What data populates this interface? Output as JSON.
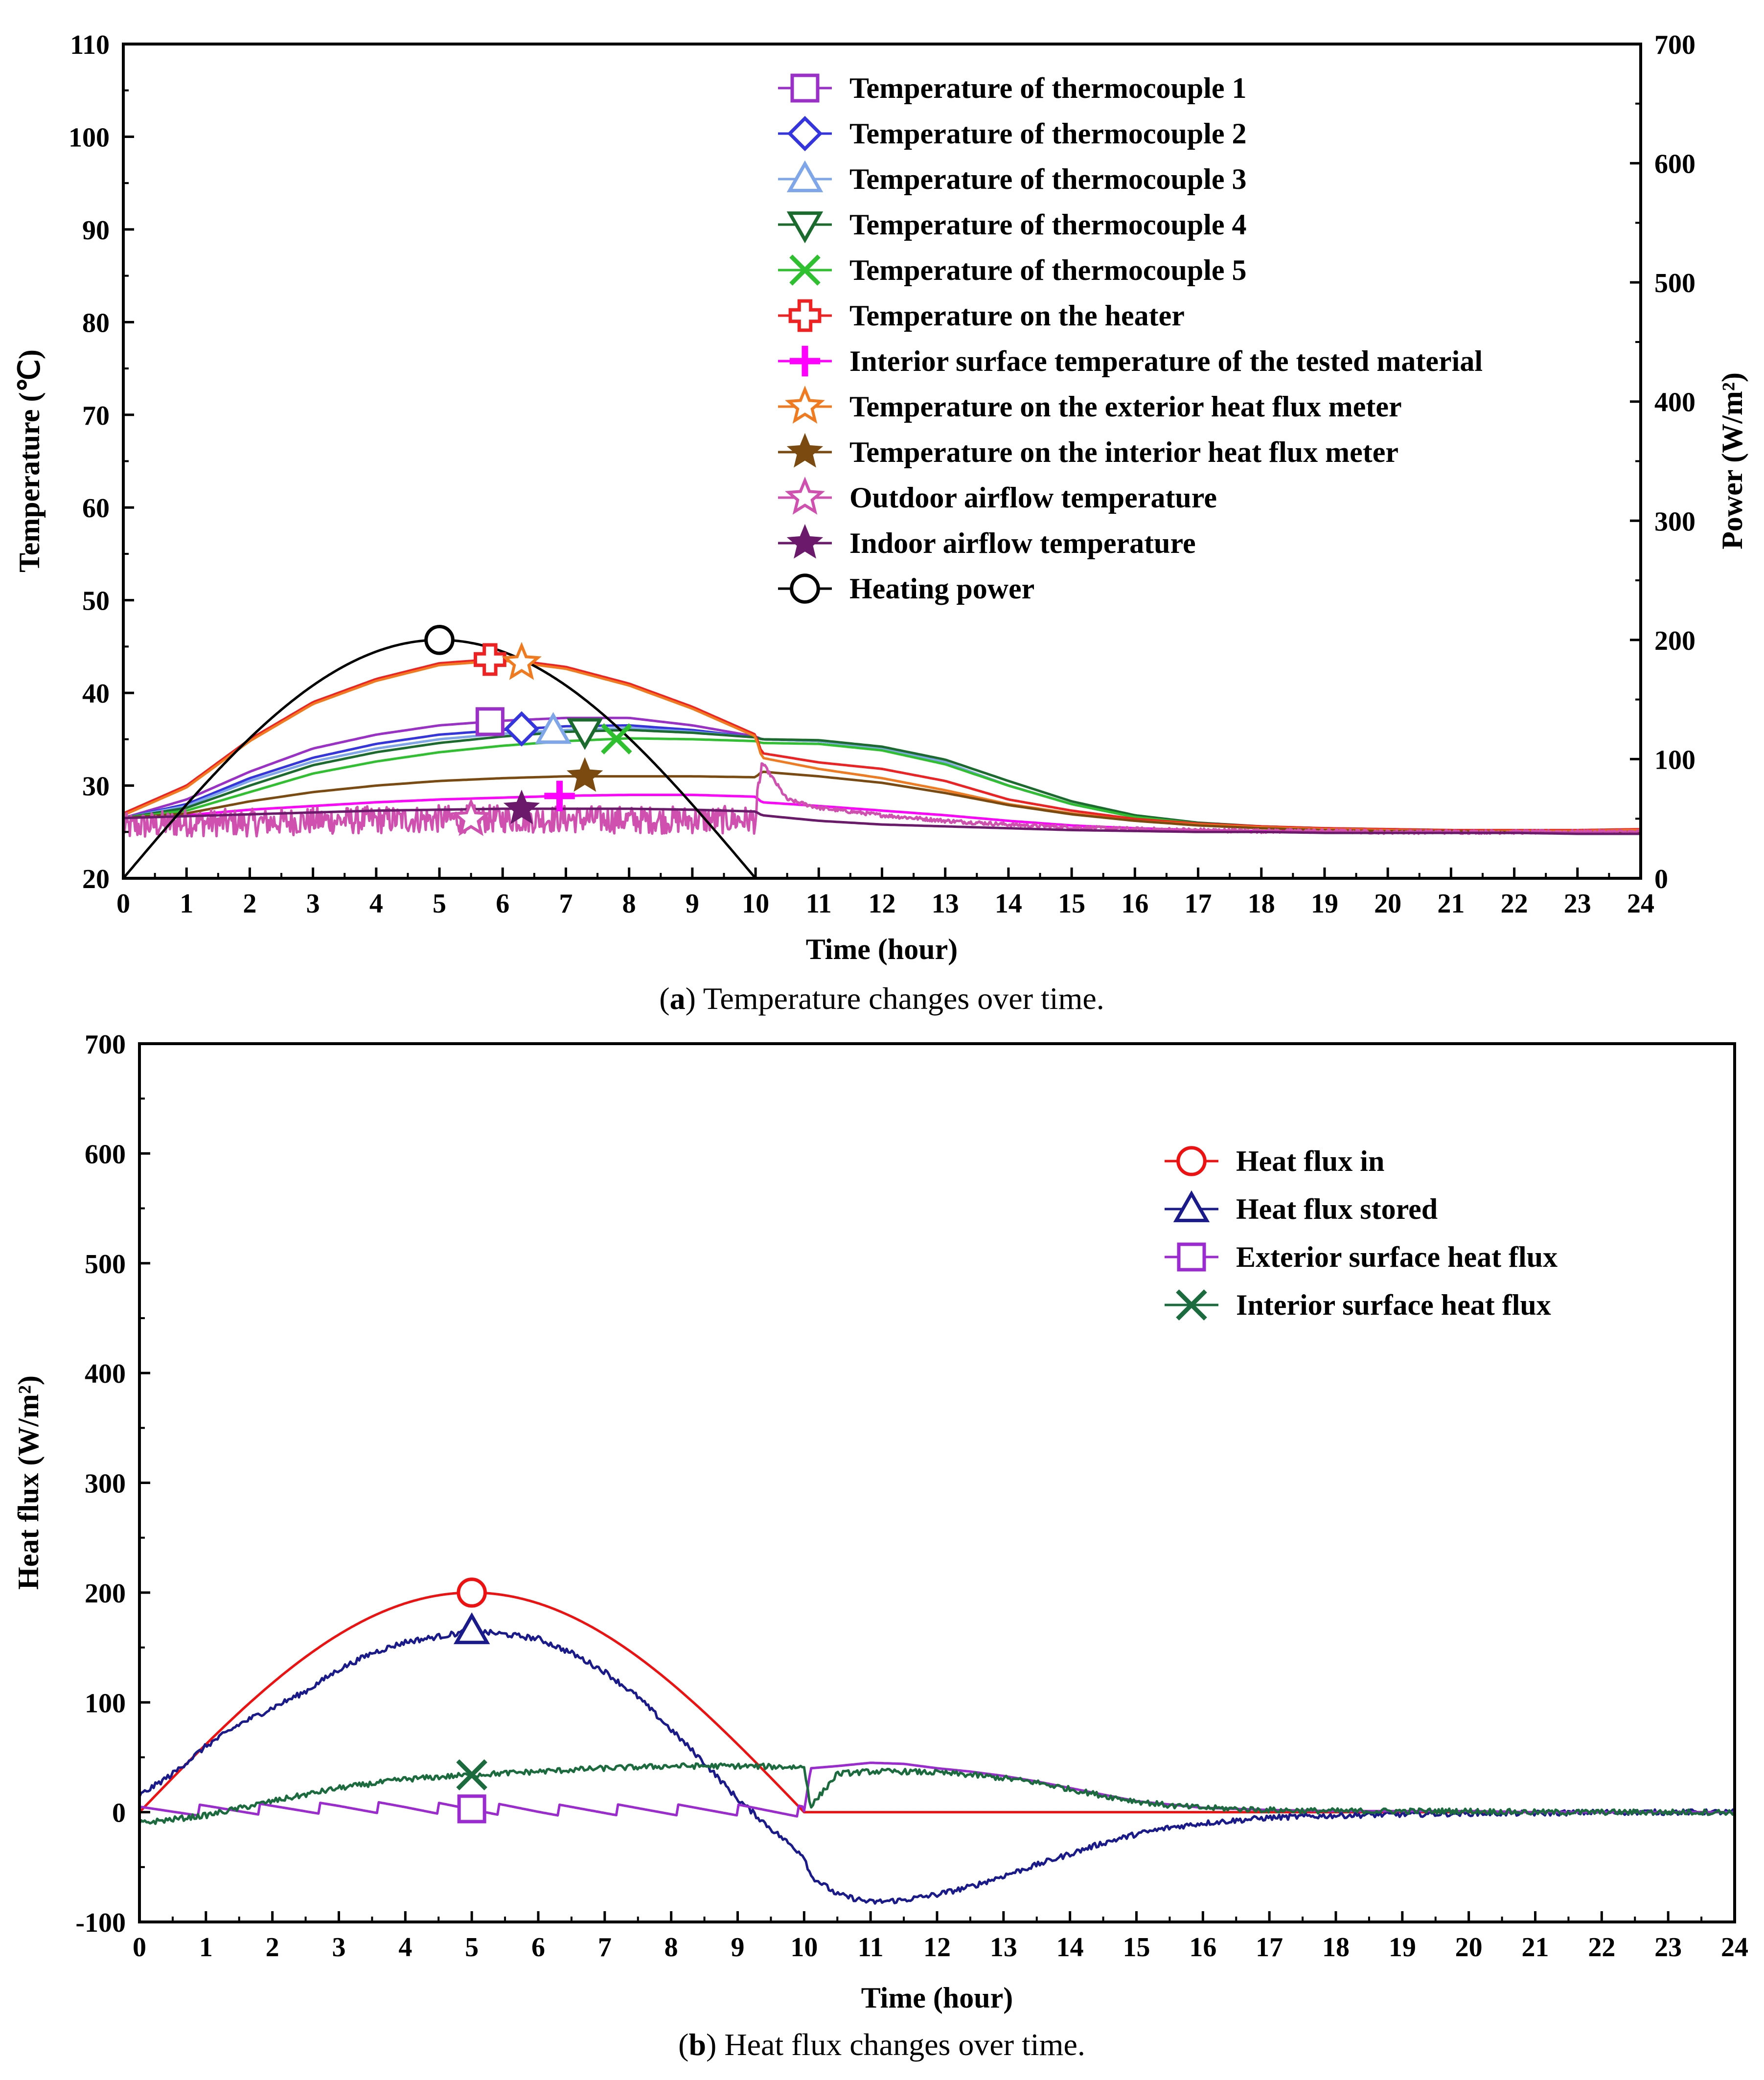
{
  "chart_data": [
    {
      "type": "line",
      "caption_letter": "a",
      "caption_text": "Temperature changes over time.",
      "xlabel": "Time (hour)",
      "ylabel": "Temperature (℃)",
      "ylabel_right": "Power (W/m²)",
      "xlim": [
        0,
        24
      ],
      "ylim": [
        20,
        110
      ],
      "ylim_right": [
        0,
        700
      ],
      "xticks": [
        0,
        1,
        2,
        3,
        4,
        5,
        6,
        7,
        8,
        9,
        10,
        11,
        12,
        13,
        14,
        15,
        16,
        17,
        18,
        19,
        20,
        21,
        22,
        23,
        24
      ],
      "yticks": [
        20,
        30,
        40,
        50,
        60,
        70,
        80,
        90,
        100,
        110
      ],
      "yticks_right": [
        0,
        100,
        200,
        300,
        400,
        500,
        600,
        700
      ],
      "grid": false,
      "legend_position": "top-right",
      "series": [
        {
          "name": "Temperature of thermocouple 1",
          "color": "#9b30c8",
          "marker": "square",
          "marker_x": 5.8,
          "axis": "left",
          "x": [
            0,
            1,
            2,
            3,
            4,
            5,
            6,
            7,
            8,
            9,
            10,
            10.1,
            11,
            12,
            13,
            14,
            15,
            16,
            17,
            18,
            19,
            20,
            21,
            22,
            23,
            24
          ],
          "y": [
            26.5,
            28.5,
            31.5,
            34,
            35.5,
            36.5,
            37,
            37.3,
            37.3,
            36.5,
            35.3,
            35,
            34.8,
            34,
            32.5,
            30,
            28,
            26.6,
            25.9,
            25.5,
            25.3,
            25.2,
            25.1,
            25.1,
            25,
            25
          ]
        },
        {
          "name": "Temperature of thermocouple 2",
          "color": "#3535e0",
          "marker": "diamond",
          "marker_x": 6.3,
          "axis": "left",
          "x": [
            0,
            1,
            2,
            3,
            4,
            5,
            6,
            7,
            8,
            9,
            10,
            10.1,
            11,
            12,
            13,
            14,
            15,
            16,
            17,
            18,
            19,
            20,
            21,
            22,
            23,
            24
          ],
          "y": [
            26.5,
            28,
            30.8,
            33,
            34.5,
            35.5,
            36,
            36.4,
            36.5,
            36,
            35.2,
            35,
            34.8,
            34,
            32.5,
            30,
            28,
            26.6,
            25.9,
            25.5,
            25.3,
            25.2,
            25.1,
            25.1,
            25,
            25
          ]
        },
        {
          "name": "Temperature of thermocouple 3",
          "color": "#7fa6e8",
          "marker": "triangle-up",
          "marker_x": 6.8,
          "axis": "left",
          "x": [
            0,
            1,
            2,
            3,
            4,
            5,
            6,
            7,
            8,
            9,
            10,
            10.1,
            11,
            12,
            13,
            14,
            15,
            16,
            17,
            18,
            19,
            20,
            21,
            22,
            23,
            24
          ],
          "y": [
            26.5,
            27.8,
            30.5,
            32.6,
            34,
            35,
            35.6,
            36,
            36.2,
            35.8,
            35.2,
            35,
            34.8,
            34,
            32.5,
            30,
            28,
            26.6,
            25.9,
            25.5,
            25.3,
            25.2,
            25.1,
            25.1,
            25,
            25
          ]
        },
        {
          "name": "Temperature of thermocouple 4",
          "color": "#1b6b2e",
          "marker": "triangle-down",
          "marker_x": 7.3,
          "axis": "left",
          "x": [
            0,
            1,
            2,
            3,
            4,
            5,
            6,
            7,
            8,
            9,
            10,
            10.1,
            11,
            12,
            13,
            14,
            15,
            16,
            17,
            18,
            19,
            20,
            21,
            22,
            23,
            24
          ],
          "y": [
            26.5,
            27.6,
            30,
            32.2,
            33.6,
            34.6,
            35.3,
            35.8,
            36,
            35.7,
            35.2,
            35,
            34.9,
            34.2,
            32.8,
            30.5,
            28.3,
            26.8,
            26,
            25.6,
            25.4,
            25.3,
            25.2,
            25.1,
            25,
            25
          ]
        },
        {
          "name": "Temperature of thermocouple 5",
          "color": "#2ec02e",
          "marker": "x",
          "marker_x": 7.8,
          "axis": "left",
          "x": [
            0,
            1,
            2,
            3,
            4,
            5,
            6,
            7,
            8,
            9,
            10,
            10.1,
            11,
            12,
            13,
            14,
            15,
            16,
            17,
            18,
            19,
            20,
            21,
            22,
            23,
            24
          ],
          "y": [
            26.5,
            27.3,
            29.3,
            31.3,
            32.6,
            33.6,
            34.3,
            34.8,
            35.1,
            35,
            34.8,
            34.6,
            34.5,
            33.8,
            32.3,
            30,
            28,
            26.6,
            25.9,
            25.5,
            25.3,
            25.2,
            25.1,
            25.1,
            25,
            25
          ]
        },
        {
          "name": "Temperature on the heater",
          "color": "#ee2222",
          "marker": "cross-open",
          "marker_x": 5.8,
          "axis": "left",
          "x": [
            0,
            1,
            2,
            3,
            4,
            5,
            6,
            7,
            8,
            9,
            10,
            10.1,
            11,
            12,
            13,
            14,
            15,
            16,
            17,
            18,
            19,
            20,
            21,
            22,
            23,
            24
          ],
          "y": [
            27,
            30,
            35,
            39,
            41.5,
            43.2,
            43.7,
            42.8,
            41,
            38.5,
            35.5,
            33.5,
            32.5,
            31.8,
            30.5,
            28.5,
            27.3,
            26.4,
            25.9,
            25.6,
            25.4,
            25.3,
            25.2,
            25.2,
            25.2,
            25.3
          ]
        },
        {
          "name": "Interior surface temperature of the tested material",
          "color": "#ff00ff",
          "marker": "plus",
          "marker_x": 6.9,
          "axis": "left",
          "x": [
            0,
            1,
            2,
            3,
            4,
            5,
            6,
            7,
            8,
            9,
            10,
            10.1,
            11,
            12,
            13,
            14,
            15,
            16,
            17,
            18,
            19,
            20,
            21,
            22,
            23,
            24
          ],
          "y": [
            26.5,
            26.8,
            27.4,
            27.8,
            28.2,
            28.5,
            28.7,
            28.9,
            29,
            29,
            28.8,
            28.2,
            27.8,
            27.3,
            26.8,
            26.2,
            25.7,
            25.4,
            25.2,
            25.1,
            25,
            25,
            25,
            25,
            25,
            25
          ]
        },
        {
          "name": "Temperature on the exterior heat flux meter",
          "color": "#f07a20",
          "marker": "star-open",
          "marker_x": 6.3,
          "axis": "left",
          "x": [
            0,
            1,
            2,
            3,
            4,
            5,
            6,
            7,
            8,
            9,
            10,
            10.1,
            11,
            12,
            13,
            14,
            15,
            16,
            17,
            18,
            19,
            20,
            21,
            22,
            23,
            24
          ],
          "y": [
            26.8,
            29.8,
            34.8,
            38.8,
            41.3,
            43,
            43.5,
            42.6,
            40.8,
            38.3,
            35.3,
            33,
            31.8,
            30.8,
            29.5,
            28,
            27,
            26.2,
            25.8,
            25.5,
            25.3,
            25.2,
            25.1,
            25.1,
            25.1,
            25.2
          ]
        },
        {
          "name": "Temperature on the interior heat flux meter",
          "color": "#7b4a10",
          "marker": "star",
          "marker_x": 7.3,
          "axis": "left",
          "x": [
            0,
            1,
            2,
            3,
            4,
            5,
            6,
            7,
            8,
            9,
            10,
            10.1,
            11,
            12,
            13,
            14,
            15,
            16,
            17,
            18,
            19,
            20,
            21,
            22,
            23,
            24
          ],
          "y": [
            26.5,
            27,
            28.3,
            29.3,
            30,
            30.5,
            30.8,
            31,
            31,
            31,
            30.9,
            31.5,
            31,
            30.3,
            29.2,
            27.9,
            26.9,
            26.2,
            25.7,
            25.4,
            25.2,
            25.1,
            25.1,
            25,
            25,
            25
          ]
        },
        {
          "name": "Outdoor airflow temperature",
          "color": "#d050b0",
          "marker": "star-open",
          "marker_x": 5.5,
          "axis": "left",
          "noisy": true,
          "x": [
            0,
            1,
            2,
            3,
            4,
            5,
            6,
            7,
            8,
            9,
            10,
            10.1,
            10.5,
            11,
            12,
            13,
            14,
            15,
            16,
            17,
            18,
            19,
            20,
            21,
            22,
            23,
            24
          ],
          "y": [
            25.5,
            26,
            26,
            26.2,
            26.3,
            26.4,
            26.4,
            26.4,
            26.3,
            26.3,
            26.3,
            32.5,
            28.5,
            27.6,
            26.8,
            26.2,
            25.8,
            25.5,
            25.3,
            25.2,
            25.1,
            25.1,
            25,
            25,
            25,
            25,
            25
          ]
        },
        {
          "name": "Indoor airflow temperature",
          "color": "#6b1a6b",
          "marker": "star",
          "marker_x": 6.3,
          "axis": "left",
          "x": [
            0,
            1,
            2,
            3,
            4,
            5,
            6,
            7,
            8,
            9,
            10,
            10.1,
            11,
            12,
            13,
            14,
            15,
            16,
            17,
            18,
            19,
            20,
            21,
            22,
            23,
            24
          ],
          "y": [
            26.5,
            26.7,
            26.9,
            27.1,
            27.3,
            27.4,
            27.5,
            27.5,
            27.5,
            27.4,
            27.2,
            26.8,
            26.2,
            25.8,
            25.6,
            25.4,
            25.2,
            25.1,
            25,
            25,
            24.9,
            24.9,
            24.9,
            24.9,
            24.8,
            24.8
          ]
        },
        {
          "name": "Heating power",
          "color": "#000000",
          "marker": "circle",
          "marker_x": 5.0,
          "axis": "right",
          "func": "sine",
          "amplitude": 200,
          "period_half": 10
        }
      ]
    },
    {
      "type": "line",
      "caption_letter": "b",
      "caption_text": "Heat flux changes over time.",
      "xlabel": "Time (hour)",
      "ylabel": "Heat flux (W/m²)",
      "xlim": [
        0,
        24
      ],
      "ylim": [
        -100,
        700
      ],
      "xticks": [
        0,
        1,
        2,
        3,
        4,
        5,
        6,
        7,
        8,
        9,
        10,
        11,
        12,
        13,
        14,
        15,
        16,
        17,
        18,
        19,
        20,
        21,
        22,
        23,
        24
      ],
      "yticks": [
        -100,
        0,
        100,
        200,
        300,
        400,
        500,
        600,
        700
      ],
      "grid": false,
      "legend_position": "upper-right",
      "series": [
        {
          "name": "Heat flux in",
          "color": "#ee1111",
          "marker": "circle",
          "marker_x": 5.0,
          "func": "sine",
          "amplitude": 200,
          "period_half": 10
        },
        {
          "name": "Heat flux stored",
          "color": "#1a1a8a",
          "marker": "triangle-up",
          "marker_x": 5.0,
          "noisy_small": true,
          "x": [
            0,
            0.5,
            1,
            1.5,
            2,
            2.5,
            3,
            3.5,
            4,
            4.5,
            5,
            5.5,
            6,
            6.5,
            7,
            7.5,
            8,
            8.5,
            9,
            9.5,
            10,
            10.1,
            10.5,
            11,
            11.5,
            12,
            12.5,
            13,
            13.5,
            14,
            14.5,
            15,
            15.5,
            16,
            17,
            18,
            19,
            20,
            21,
            22,
            23,
            24
          ],
          "y": [
            15,
            35,
            60,
            80,
            95,
            110,
            130,
            145,
            155,
            160,
            165,
            162,
            158,
            145,
            128,
            105,
            75,
            45,
            12,
            -15,
            -40,
            -58,
            -75,
            -82,
            -80,
            -75,
            -68,
            -58,
            -48,
            -38,
            -28,
            -20,
            -14,
            -10,
            -5,
            -3,
            -2,
            -1,
            -1,
            0,
            0,
            0
          ]
        },
        {
          "name": "Exterior surface heat flux",
          "color": "#9b2ad0",
          "marker": "square",
          "marker_x": 5.0,
          "sawtooth": true,
          "x": [
            0,
            1,
            2,
            3,
            4,
            5,
            6,
            7,
            8,
            9,
            10,
            10.1,
            10.5,
            11,
            11.5,
            12,
            12.5,
            13,
            13.5,
            14,
            14.5,
            15,
            15.5,
            16,
            17,
            18,
            19,
            20,
            21,
            22,
            23,
            24
          ],
          "y": [
            0,
            2,
            3,
            4,
            4,
            3,
            2,
            2,
            2,
            2,
            1,
            40,
            42,
            45,
            44,
            40,
            37,
            33,
            28,
            22,
            16,
            10,
            7,
            4,
            2,
            1,
            1,
            1,
            0,
            0,
            0,
            0
          ]
        },
        {
          "name": "Interior surface heat flux",
          "color": "#1b6b3e",
          "marker": "x",
          "marker_x": 5.0,
          "noisy_small": true,
          "x": [
            0,
            1,
            2,
            3,
            4,
            5,
            6,
            7,
            8,
            9,
            10,
            10.1,
            10.5,
            11,
            11.5,
            12,
            12.5,
            13,
            13.5,
            14,
            14.5,
            15,
            15.5,
            16,
            17,
            18,
            19,
            20,
            21,
            22,
            23,
            24
          ],
          "y": [
            -10,
            -3,
            10,
            22,
            30,
            34,
            37,
            40,
            42,
            42,
            41,
            5,
            35,
            37,
            37,
            36,
            34,
            31,
            27,
            21,
            15,
            10,
            6,
            4,
            2,
            1,
            1,
            1,
            0,
            0,
            0,
            0
          ]
        }
      ]
    }
  ]
}
